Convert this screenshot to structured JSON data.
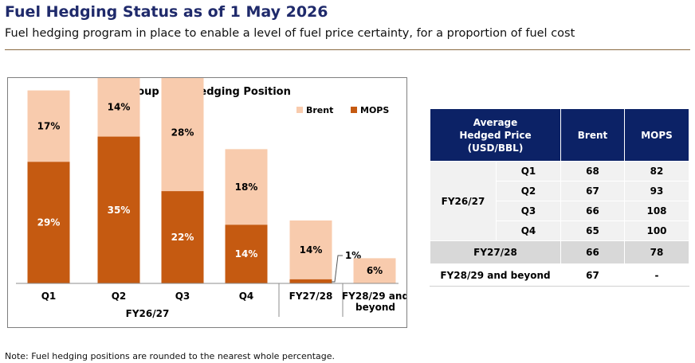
{
  "header": {
    "title": "Fuel Hedging Status as of 1 May 2026",
    "subtitle": "Fuel hedging program in place to enable a level of fuel price certainty, for a proportion of fuel cost"
  },
  "chart_data": {
    "type": "bar",
    "stacked": true,
    "title": "Group Fuel Hedging Position",
    "categories": [
      "Q1",
      "Q2",
      "Q3",
      "Q4",
      "FY27/28",
      "FY28/29 and beyond"
    ],
    "category_groups": [
      {
        "label": "FY26/27",
        "categories": [
          "Q1",
          "Q2",
          "Q3",
          "Q4"
        ]
      }
    ],
    "series": [
      {
        "name": "MOPS",
        "color": "#c55a11",
        "values": [
          29,
          35,
          22,
          14,
          1,
          0
        ]
      },
      {
        "name": "Brent",
        "color": "#f8cbad",
        "values": [
          17,
          14,
          28,
          18,
          14,
          6
        ]
      }
    ],
    "data_labels": {
      "MOPS": [
        "29%",
        "35%",
        "22%",
        "14%",
        "1%",
        ""
      ],
      "Brent": [
        "17%",
        "14%",
        "28%",
        "18%",
        "14%",
        "6%"
      ]
    },
    "legend": [
      "Brent",
      "MOPS"
    ],
    "legend_position": "top-right",
    "unit": "%",
    "grid": false
  },
  "table": {
    "headers": [
      "Average Hedged Price (USD/BBL)",
      "Brent",
      "MOPS"
    ],
    "group_label": "FY26/27",
    "quarter_rows": [
      {
        "quarter": "Q1",
        "brent": "68",
        "mops": "82"
      },
      {
        "quarter": "Q2",
        "brent": "67",
        "mops": "93"
      },
      {
        "quarter": "Q3",
        "brent": "66",
        "mops": "108"
      },
      {
        "quarter": "Q4",
        "brent": "65",
        "mops": "100"
      }
    ],
    "summary_rows": [
      {
        "label": "FY27/28",
        "brent": "66",
        "mops": "78"
      },
      {
        "label": "FY28/29 and beyond",
        "brent": "67",
        "mops": "-"
      }
    ]
  },
  "note": "Note: Fuel hedging positions are rounded to the nearest whole percentage."
}
